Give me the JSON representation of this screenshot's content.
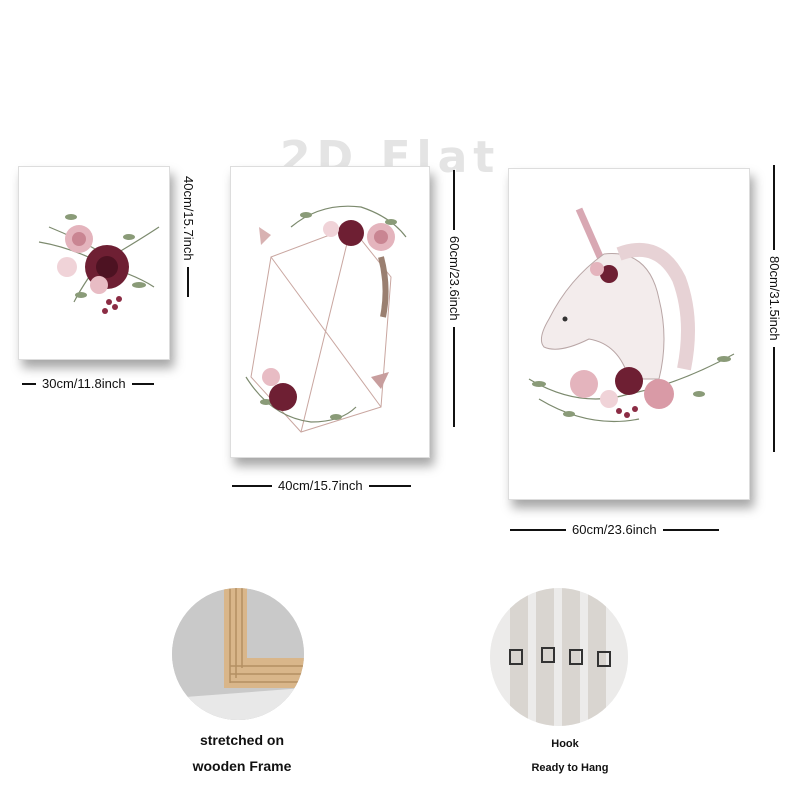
{
  "watermark": "2D Flat",
  "panels": [
    {
      "width_label": "30cm/11.8inch",
      "height_label": "40cm/15.7inch"
    },
    {
      "width_label": "40cm/15.7inch",
      "height_label": "60cm/23.6inch"
    },
    {
      "width_label": "60cm/23.6inch",
      "height_label": "80cm/31.5inch"
    }
  ],
  "features": [
    {
      "caption_line1": "stretched on",
      "caption_line2": "wooden Frame"
    },
    {
      "caption_line1": "Hook",
      "caption_line2": "Ready to Hang"
    }
  ],
  "colors": {
    "rose_dark": "#6e1f33",
    "rose_pink": "#d99aa6",
    "leaf": "#7c8a6e",
    "wood": "#d9b68a"
  }
}
